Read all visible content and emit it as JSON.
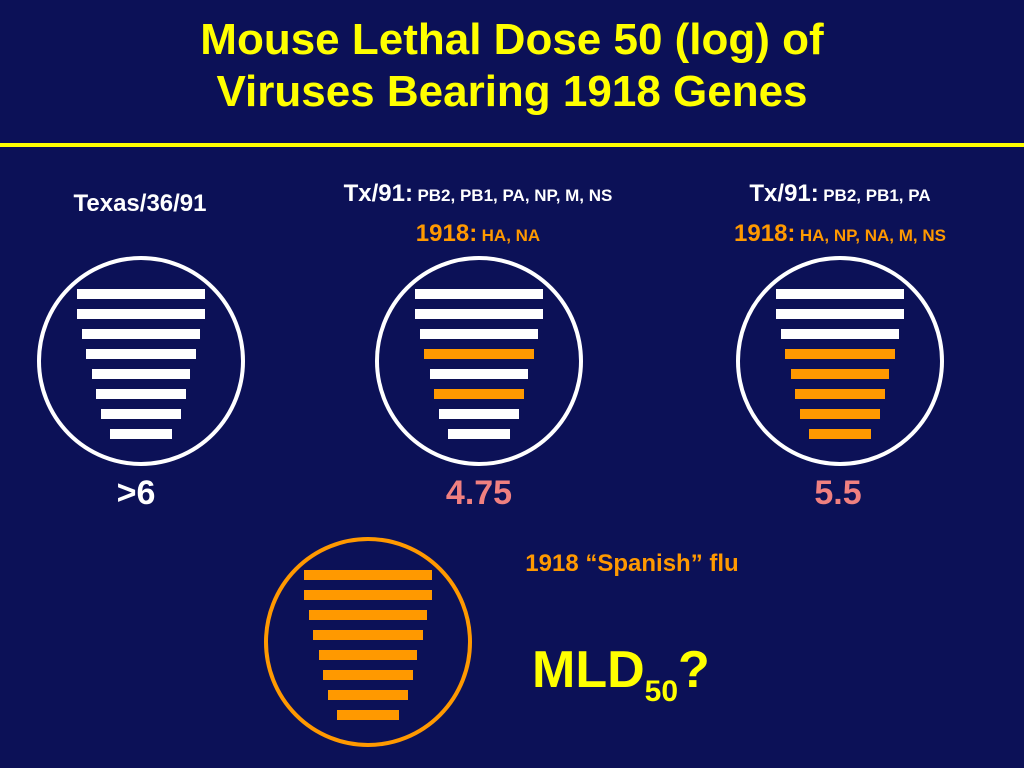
{
  "title": {
    "line1": "Mouse Lethal Dose 50 (log) of",
    "line2": "Viruses Bearing 1918 Genes"
  },
  "colors": {
    "background": "#0c1157",
    "title": "#ffff00",
    "tx91_segment": "#ffffff",
    "segment_1918": "#ff9900",
    "value_highlight": "#f08080"
  },
  "viruses": [
    {
      "label": "Texas/36/91",
      "value": ">6",
      "circle_color": "#ffffff",
      "segments": [
        "white",
        "white",
        "white",
        "white",
        "white",
        "white",
        "white",
        "white"
      ]
    },
    {
      "tx91_prefix": "Tx/91:",
      "tx91_genes": "PB2, PB1, PA, NP, M, NS",
      "h1918_prefix": "1918:",
      "h1918_genes": "HA, NA",
      "value": "4.75",
      "circle_color": "#ffffff",
      "segments": [
        "white",
        "white",
        "white",
        "orange",
        "white",
        "orange",
        "white",
        "white"
      ]
    },
    {
      "tx91_prefix": "Tx/91:",
      "tx91_genes": "PB2, PB1, PA",
      "h1918_prefix": "1918:",
      "h1918_genes": "HA, NP, NA, M, NS",
      "value": "5.5",
      "circle_color": "#ffffff",
      "segments": [
        "white",
        "white",
        "white",
        "orange",
        "orange",
        "orange",
        "orange",
        "orange"
      ]
    }
  ],
  "spanish": {
    "label": "1918 “Spanish” flu",
    "circle_color": "#ff9900",
    "segments": [
      "orange",
      "orange",
      "orange",
      "orange",
      "orange",
      "orange",
      "orange",
      "orange"
    ],
    "mld_main": "MLD",
    "mld_sub": "50",
    "mld_tail": "?"
  }
}
